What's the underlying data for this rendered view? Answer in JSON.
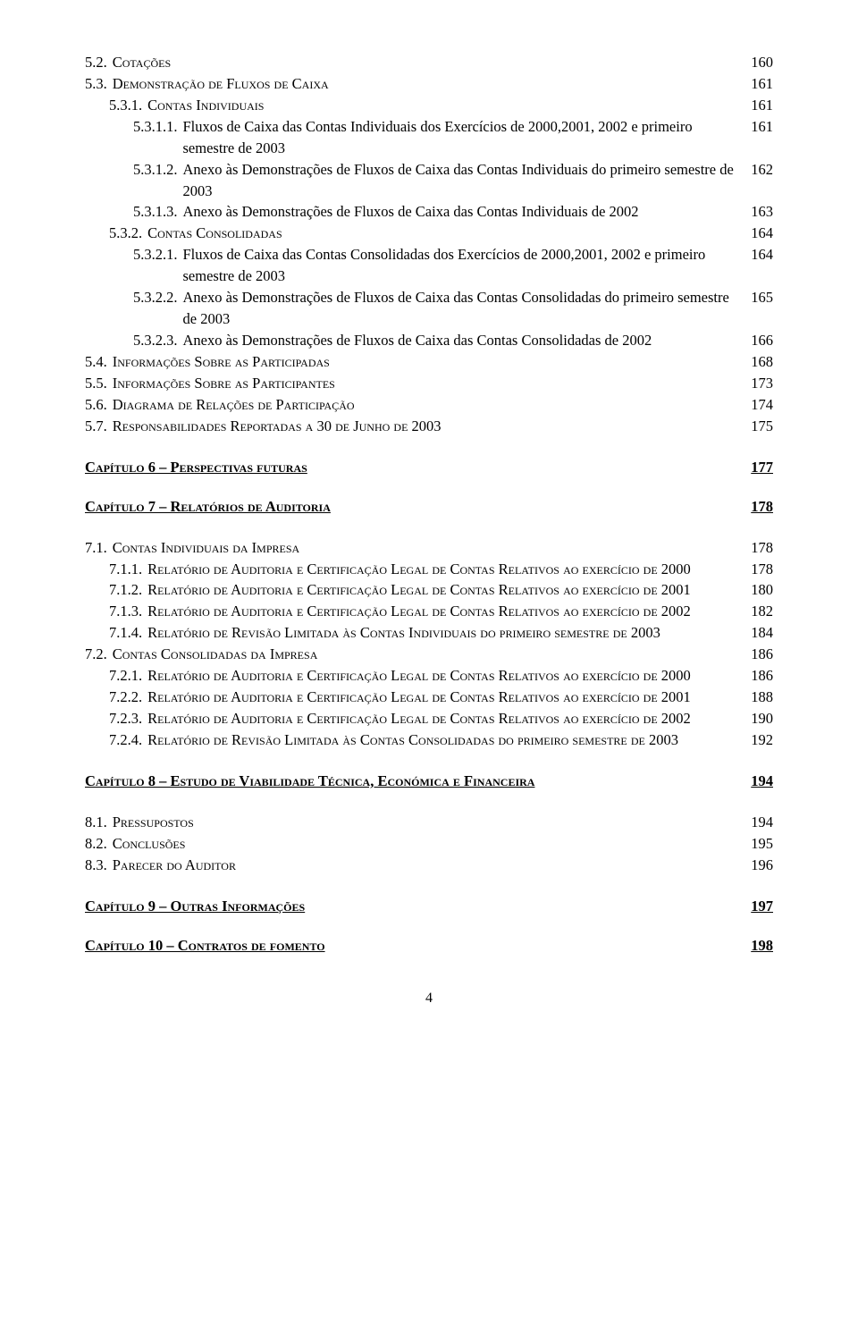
{
  "page_number": "4",
  "colors": {
    "text": "#000000",
    "background": "#ffffff"
  },
  "font": {
    "family": "Times New Roman",
    "base_size_pt": 12
  },
  "toc": [
    {
      "num": "5.2.",
      "title": "Cotações",
      "page": "160",
      "indent": 0,
      "smallcaps": true
    },
    {
      "num": "5.3.",
      "title": "Demonstração de Fluxos de Caixa",
      "page": "161",
      "indent": 0,
      "smallcaps": true
    },
    {
      "num": "5.3.1.",
      "title": "Contas Individuais",
      "page": "161",
      "indent": 1,
      "smallcaps": true
    },
    {
      "num": "5.3.1.1.",
      "title": "Fluxos de Caixa das Contas Individuais dos Exercícios de 2000,2001, 2002 e primeiro semestre de 2003",
      "page": "161",
      "indent": 2
    },
    {
      "num": "5.3.1.2.",
      "title": "Anexo às Demonstrações de Fluxos de Caixa das Contas Individuais do primeiro semestre de 2003",
      "page": "162",
      "indent": 2
    },
    {
      "num": "5.3.1.3.",
      "title": "Anexo às Demonstrações de Fluxos de Caixa das Contas Individuais de 2002",
      "page": "163",
      "indent": 2
    },
    {
      "num": "5.3.2.",
      "title": "Contas Consolidadas",
      "page": "164",
      "indent": 1,
      "smallcaps": true
    },
    {
      "num": "5.3.2.1.",
      "title": "Fluxos de Caixa das Contas Consolidadas dos Exercícios de 2000,2001, 2002 e primeiro semestre de 2003",
      "page": "164",
      "indent": 2
    },
    {
      "num": "5.3.2.2.",
      "title": "Anexo às Demonstrações de Fluxos de Caixa das Contas Consolidadas do primeiro semestre de 2003",
      "page": "165",
      "indent": 2
    },
    {
      "num": "5.3.2.3.",
      "title": "Anexo às Demonstrações de Fluxos de Caixa das Contas Consolidadas de 2002",
      "page": "166",
      "indent": 2
    },
    {
      "num": "5.4.",
      "title": "Informações Sobre as Participadas",
      "page": "168",
      "indent": 0,
      "smallcaps": true
    },
    {
      "num": "5.5.",
      "title": "Informações Sobre as Participantes",
      "page": "173",
      "indent": 0,
      "smallcaps": true
    },
    {
      "num": "5.6.",
      "title": "Diagrama de Relações de Participação",
      "page": "174",
      "indent": 0,
      "smallcaps": true
    },
    {
      "num": "5.7.",
      "title": "Responsabilidades Reportadas a 30 de Junho de 2003",
      "page": "175",
      "indent": 0,
      "smallcaps": true
    }
  ],
  "chapter6": {
    "title": "Capítulo 6 – Perspectivas futuras",
    "page": "177"
  },
  "chapter7": {
    "title": "Capítulo 7 – Relatórios de Auditoria",
    "page": "178"
  },
  "ch7_entries": [
    {
      "num": "7.1.",
      "title": "Contas Individuais da Impresa",
      "page": "178",
      "indent": 0,
      "smallcaps": true
    },
    {
      "num": "7.1.1.",
      "title": "Relatório de Auditoria e Certificação Legal de Contas Relativos ao exercício de 2000",
      "page": "178",
      "indent": 1,
      "smallcaps": true
    },
    {
      "num": "7.1.2.",
      "title": "Relatório de Auditoria e Certificação Legal de Contas Relativos ao exercício de 2001",
      "page": "180",
      "indent": 1,
      "smallcaps": true
    },
    {
      "num": "7.1.3.",
      "title": "Relatório de Auditoria e Certificação Legal de Contas Relativos ao exercício de 2002",
      "page": "182",
      "indent": 1,
      "smallcaps": true
    },
    {
      "num": "7.1.4.",
      "title": "Relatório de Revisão Limitada às Contas Individuais do primeiro semestre de 2003",
      "page": "184",
      "indent": 1,
      "smallcaps": true
    },
    {
      "num": "7.2.",
      "title": "Contas Consolidadas da Impresa",
      "page": "186",
      "indent": 0,
      "smallcaps": true
    },
    {
      "num": "7.2.1.",
      "title": "Relatório de Auditoria e Certificação Legal de Contas Relativos ao exercício de 2000",
      "page": "186",
      "indent": 1,
      "smallcaps": true
    },
    {
      "num": "7.2.2.",
      "title": "Relatório de Auditoria e Certificação Legal de Contas Relativos ao exercício de 2001",
      "page": "188",
      "indent": 1,
      "smallcaps": true
    },
    {
      "num": "7.2.3.",
      "title": "Relatório de Auditoria e Certificação Legal de Contas Relativos ao exercício de 2002",
      "page": "190",
      "indent": 1,
      "smallcaps": true
    },
    {
      "num": "7.2.4.",
      "title": "Relatório de Revisão Limitada às Contas Consolidadas do primeiro semestre de 2003",
      "page": "192",
      "indent": 1,
      "smallcaps": true
    }
  ],
  "chapter8": {
    "title": "Capítulo 8 – Estudo de Viabilidade Técnica, Económica e Financeira",
    "page": "194"
  },
  "ch8_entries": [
    {
      "num": "8.1.",
      "title": "Pressupostos",
      "page": "194",
      "indent": 0,
      "smallcaps": true
    },
    {
      "num": "8.2.",
      "title": "Conclusões",
      "page": "195",
      "indent": 0,
      "smallcaps": true
    },
    {
      "num": "8.3.",
      "title": "Parecer do Auditor",
      "page": "196",
      "indent": 0,
      "smallcaps": true
    }
  ],
  "chapter9": {
    "title": "Capítulo 9 – Outras Informações",
    "page": "197"
  },
  "chapter10": {
    "title": "Capítulo 10 – Contratos de fomento",
    "page": "198"
  }
}
